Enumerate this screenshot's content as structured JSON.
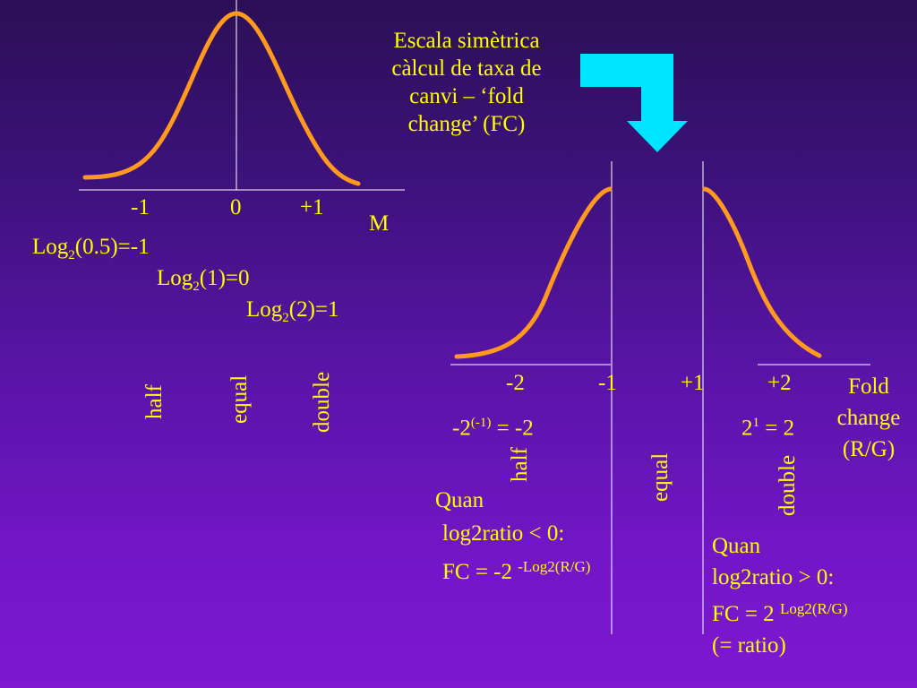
{
  "colors": {
    "text": "#ffff00",
    "curve": "#ff9a1f",
    "axis": "#ffffff",
    "arrow": "#00e5ff"
  },
  "left_panel": {
    "ticks": [
      "-1",
      "0",
      "+1"
    ],
    "axis_label": "M",
    "log_lines": [
      {
        "pre": "Log",
        "sub": "2",
        "post": "(0.5)=-1"
      },
      {
        "pre": "Log",
        "sub": "2",
        "post": "(1)=0"
      },
      {
        "pre": "Log",
        "sub": "2",
        "post": "(2)=1"
      }
    ],
    "words": [
      "half",
      "equal",
      "double"
    ]
  },
  "title_lines": [
    "Escala simètrica",
    "càlcul de taxa de",
    "canvi – ‘fold",
    "change’ (FC)"
  ],
  "right_panel": {
    "ticks": [
      "-2",
      "-1",
      "+1",
      "+2"
    ],
    "axis_label_lines": [
      "Fold",
      "change",
      "(R/G)"
    ],
    "left_formula": {
      "base": "-2",
      "sup": "(-1)",
      "rest": " = -2"
    },
    "right_formula": {
      "base": "2",
      "sup": "1",
      "rest": " = 2"
    },
    "words": [
      "half",
      "equal",
      "double"
    ],
    "quan_neg": {
      "line1": "Quan",
      "line2": "log2ratio < 0:",
      "line3": "FC = -2 ",
      "sup": "-Log2(R/G)"
    },
    "quan_pos": {
      "line1": "Quan",
      "line2": "log2ratio > 0:",
      "line3": " FC = 2 ",
      "sup": "Log2(R/G)",
      "line4": "(= ratio)"
    }
  }
}
